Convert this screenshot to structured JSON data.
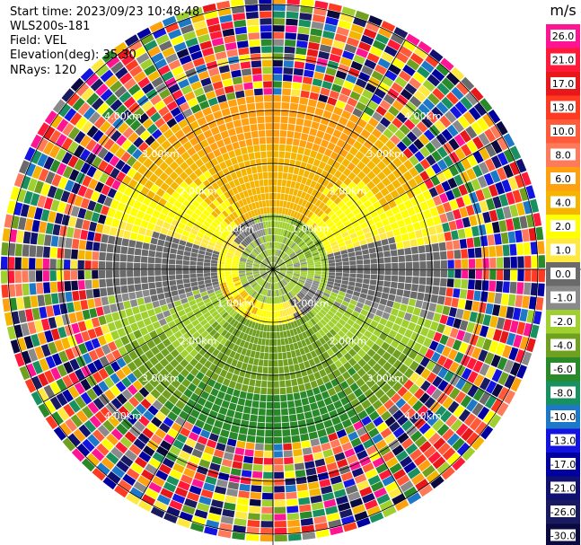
{
  "header": {
    "start_time": "Start time: 2023/09/23 10:48:48",
    "instrument": "WLS200s-181",
    "field": "Field: VEL",
    "elevation": "Elevation(deg): 35.30",
    "nrays": "NRays: 120"
  },
  "chart_data": {
    "type": "heatmap",
    "projection": "polar-ppi",
    "field": "VEL",
    "unit": "m/s",
    "nrays": 120,
    "range_labels": [
      "1.00km",
      "2.00km",
      "3.00km",
      "4.00km"
    ],
    "range_max_km": 5.0,
    "rings_km": [
      1,
      2,
      3,
      4,
      5
    ],
    "spokes_deg": [
      0,
      30,
      60,
      90,
      120,
      150,
      180,
      210,
      240,
      270,
      300,
      330
    ],
    "colorbar": {
      "levels": [
        "26.0",
        "21.0",
        "17.0",
        "13.0",
        "10.0",
        "8.0",
        "6.0",
        "4.0",
        "2.0",
        "1.0",
        "0.0",
        "-1.0",
        "-2.0",
        "-4.0",
        "-6.0",
        "-8.0",
        "-10.0",
        "-13.0",
        "-17.0",
        "-21.0",
        "-26.0",
        "-30.0"
      ],
      "colors": [
        "#ff1493",
        "#ff1a3a",
        "#e8181a",
        "#ff3a22",
        "#ff5a3a",
        "#ff7a5a",
        "#ffa010",
        "#f4b400",
        "#ffff00",
        "#ffe840",
        "#6a6a6a",
        "#8a8a8a",
        "#a0d030",
        "#70a020",
        "#2a8a2a",
        "#189060",
        "#1e78c8",
        "#1414e0",
        "#0000a0",
        "#101070",
        "#1a1a60",
        "#0a0a40"
      ]
    },
    "regions": [
      {
        "name": "core",
        "from_km": 0,
        "to_km": 0.55,
        "value": -2.0
      },
      {
        "name": "inner-east",
        "from_km": 0.55,
        "to_km": 1.0,
        "east": -2.0,
        "west": 4.0
      },
      {
        "name": "mid",
        "from_km": 1.0,
        "to_km": 2.3,
        "north": 4.0,
        "south": -4.0,
        "east": 0.0,
        "west": 0.0
      },
      {
        "name": "outer",
        "from_km": 2.3,
        "to_km": 3.3,
        "north": 6.0,
        "south": -6.0,
        "east": 0.0,
        "west": 0.0
      },
      {
        "name": "noise",
        "from_km": 3.3,
        "to_km": 5.0
      }
    ]
  }
}
